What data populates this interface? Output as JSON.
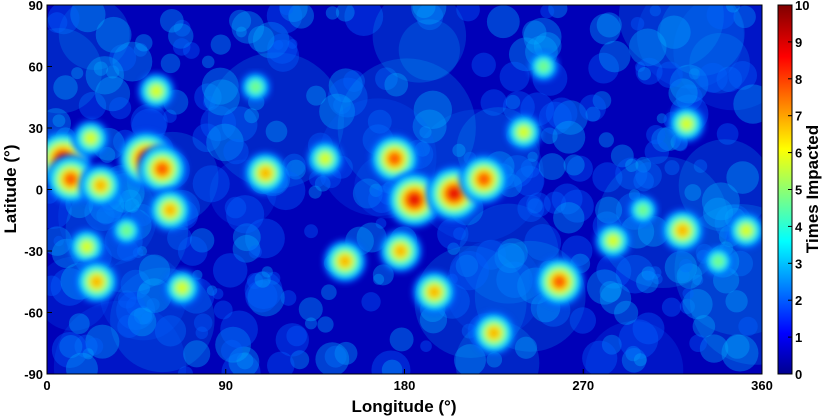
{
  "chart_data": {
    "type": "heatmap",
    "title": "",
    "xlabel": "Longitude (°)",
    "ylabel": "Latitude (°)",
    "xlim": [
      0,
      360
    ],
    "ylim": [
      -90,
      90
    ],
    "xticks": [
      0,
      90,
      180,
      270,
      360
    ],
    "yticks": [
      90,
      60,
      30,
      0,
      -30,
      -60,
      -90
    ],
    "colorbar": {
      "label": "Times Impacted",
      "range": [
        0,
        10
      ],
      "ticks": [
        0,
        1,
        2,
        3,
        4,
        5,
        6,
        7,
        8,
        9,
        10
      ],
      "colormap": "jet"
    },
    "hotspots": [
      {
        "lon": 8,
        "lat": 15,
        "times": 9
      },
      {
        "lon": 12,
        "lat": 5,
        "times": 8
      },
      {
        "lon": 22,
        "lat": 25,
        "times": 6
      },
      {
        "lon": 27,
        "lat": 2,
        "times": 7
      },
      {
        "lon": 20,
        "lat": -28,
        "times": 6
      },
      {
        "lon": 25,
        "lat": -45,
        "times": 7
      },
      {
        "lon": 50,
        "lat": 15,
        "times": 9
      },
      {
        "lon": 58,
        "lat": 10,
        "times": 8
      },
      {
        "lon": 62,
        "lat": -10,
        "times": 7
      },
      {
        "lon": 55,
        "lat": 48,
        "times": 6
      },
      {
        "lon": 68,
        "lat": -48,
        "times": 6
      },
      {
        "lon": 40,
        "lat": -20,
        "times": 5
      },
      {
        "lon": 110,
        "lat": 8,
        "times": 7
      },
      {
        "lon": 140,
        "lat": 15,
        "times": 6
      },
      {
        "lon": 150,
        "lat": -35,
        "times": 7
      },
      {
        "lon": 175,
        "lat": 15,
        "times": 8
      },
      {
        "lon": 185,
        "lat": -5,
        "times": 9
      },
      {
        "lon": 205,
        "lat": -2,
        "times": 9
      },
      {
        "lon": 220,
        "lat": 5,
        "times": 8
      },
      {
        "lon": 178,
        "lat": -30,
        "times": 7
      },
      {
        "lon": 195,
        "lat": -50,
        "times": 7
      },
      {
        "lon": 225,
        "lat": -70,
        "times": 7
      },
      {
        "lon": 240,
        "lat": 28,
        "times": 6
      },
      {
        "lon": 258,
        "lat": -45,
        "times": 8
      },
      {
        "lon": 285,
        "lat": -25,
        "times": 6
      },
      {
        "lon": 300,
        "lat": -10,
        "times": 5
      },
      {
        "lon": 320,
        "lat": -20,
        "times": 7
      },
      {
        "lon": 322,
        "lat": 32,
        "times": 6
      },
      {
        "lon": 338,
        "lat": -35,
        "times": 5
      },
      {
        "lon": 352,
        "lat": -20,
        "times": 6
      },
      {
        "lon": 250,
        "lat": 60,
        "times": 5
      },
      {
        "lon": 105,
        "lat": 50,
        "times": 5
      }
    ]
  }
}
